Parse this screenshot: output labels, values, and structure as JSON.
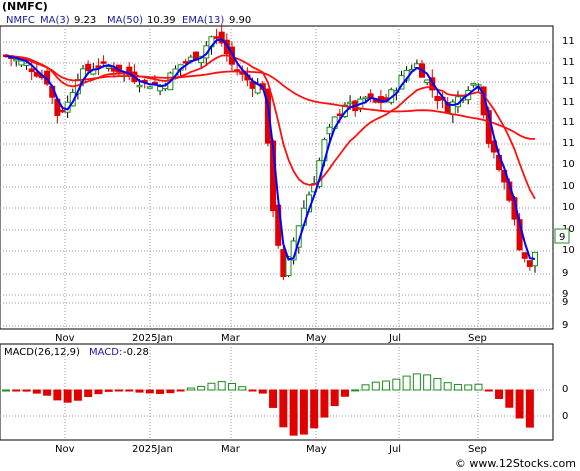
{
  "title": "(NMFC)",
  "watermark": "© www.12Stocks.com",
  "chart_data": [
    {
      "type": "candlestick",
      "series": [
        {
          "name": "NMFC",
          "kind": "candles"
        },
        {
          "name": "MA(3)",
          "display": "9.23",
          "color": "#0000ff"
        },
        {
          "name": "MA(50)",
          "display": "10.39",
          "color": "#ff0000"
        },
        {
          "name": "EMA(13)",
          "display": "9.90",
          "color": "#ff0000"
        }
      ],
      "legend_labels": [
        "NMFC",
        "MA(3)",
        "MA(50)",
        "EMA(13)"
      ],
      "legend_values": [
        "9.23",
        "10.39",
        "9.90"
      ],
      "x_labels": [
        "Nov",
        "2025Jan",
        "Mar",
        "May",
        "Jul",
        "Sep"
      ],
      "y_labels": [
        "11",
        "11",
        "11",
        "11",
        "11",
        "11",
        "10",
        "10",
        "10",
        "10",
        "10",
        "9",
        "9",
        "9",
        "9",
        "9"
      ],
      "last_price_label": "9",
      "ylim": [
        8.5,
        11.25
      ],
      "grid": true,
      "up_color": "#1e8c1e",
      "down_color": "#e00000"
    },
    {
      "type": "bar",
      "title": "MACD(26,12,9)",
      "indicator_label": "MACD:",
      "indicator_value": "-0.28",
      "x_labels": [
        "Nov",
        "2025Jan",
        "Mar",
        "May",
        "Jul",
        "Sep"
      ],
      "y_labels": [
        "0",
        "0"
      ],
      "ylim": [
        -0.45,
        0.45
      ],
      "grid": true,
      "up_color": "#1e8c1e",
      "down_color": "#e00000"
    }
  ]
}
